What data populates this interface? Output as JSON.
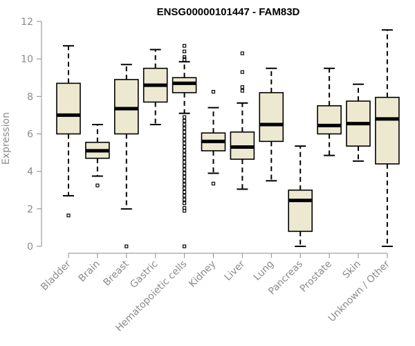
{
  "chart_data": {
    "type": "boxplot",
    "title": "ENSG00000101447 - FAM83D",
    "ylabel": "Expression",
    "ylim": [
      0,
      12
    ],
    "yticks": [
      0,
      2,
      4,
      6,
      8,
      10,
      12
    ],
    "categories": [
      "Bladder",
      "Brain",
      "Breast",
      "Gastric",
      "Hematopoietic cells",
      "Kidney",
      "Liver",
      "Lung",
      "Pancreas",
      "Prostate",
      "Skin",
      "Unknown / Other"
    ],
    "boxes": [
      {
        "category": "Bladder",
        "whisker_low": 2.7,
        "q1": 6.0,
        "median": 7.0,
        "q3": 8.7,
        "whisker_high": 10.7,
        "outliers": [
          1.65
        ]
      },
      {
        "category": "Brain",
        "whisker_low": 3.75,
        "q1": 4.7,
        "median": 5.1,
        "q3": 5.55,
        "whisker_high": 6.5,
        "outliers": [
          3.25
        ]
      },
      {
        "category": "Breast",
        "whisker_low": 2.0,
        "q1": 6.0,
        "median": 7.35,
        "q3": 8.9,
        "whisker_high": 9.7,
        "outliers": [
          0.0
        ]
      },
      {
        "category": "Gastric",
        "whisker_low": 6.5,
        "q1": 7.7,
        "median": 8.6,
        "q3": 9.5,
        "whisker_high": 10.5,
        "outliers": []
      },
      {
        "category": "Hematopoietic cells",
        "whisker_low": 7.1,
        "q1": 8.2,
        "median": 8.7,
        "q3": 9.0,
        "whisker_high": 9.85,
        "outliers": [
          10.7,
          10.4,
          10.1,
          10.0,
          9.95,
          6.9,
          6.7,
          6.5,
          6.3,
          6.1,
          5.9,
          5.7,
          5.5,
          5.3,
          5.1,
          4.9,
          4.7,
          4.5,
          4.3,
          4.1,
          3.9,
          3.7,
          3.5,
          3.3,
          3.1,
          2.9,
          2.7,
          2.5,
          2.3,
          2.05,
          1.9,
          0.0
        ]
      },
      {
        "category": "Kidney",
        "whisker_low": 3.9,
        "q1": 5.1,
        "median": 5.6,
        "q3": 6.05,
        "whisker_high": 7.4,
        "outliers": [
          8.25,
          3.35
        ]
      },
      {
        "category": "Liver",
        "whisker_low": 3.05,
        "q1": 4.65,
        "median": 5.3,
        "q3": 6.1,
        "whisker_high": 7.65,
        "outliers": [
          10.3,
          9.3,
          8.5,
          8.3
        ]
      },
      {
        "category": "Lung",
        "whisker_low": 3.5,
        "q1": 5.6,
        "median": 6.5,
        "q3": 8.2,
        "whisker_high": 9.5,
        "outliers": []
      },
      {
        "category": "Pancreas",
        "whisker_low": 0.0,
        "q1": 0.8,
        "median": 2.45,
        "q3": 3.0,
        "whisker_high": 5.35,
        "outliers": []
      },
      {
        "category": "Prostate",
        "whisker_low": 4.85,
        "q1": 6.0,
        "median": 6.45,
        "q3": 7.5,
        "whisker_high": 9.5,
        "outliers": []
      },
      {
        "category": "Skin",
        "whisker_low": 4.55,
        "q1": 5.35,
        "median": 6.55,
        "q3": 7.75,
        "whisker_high": 8.65,
        "outliers": []
      },
      {
        "category": "Unknown / Other",
        "whisker_low": 0.0,
        "q1": 4.4,
        "median": 6.8,
        "q3": 7.95,
        "whisker_high": 11.55,
        "outliers": []
      }
    ],
    "grid": false,
    "legend": "none"
  },
  "colors": {
    "box_fill": "#ede8d0",
    "box_stroke": "#000000",
    "axis": "#8a8a8a"
  }
}
